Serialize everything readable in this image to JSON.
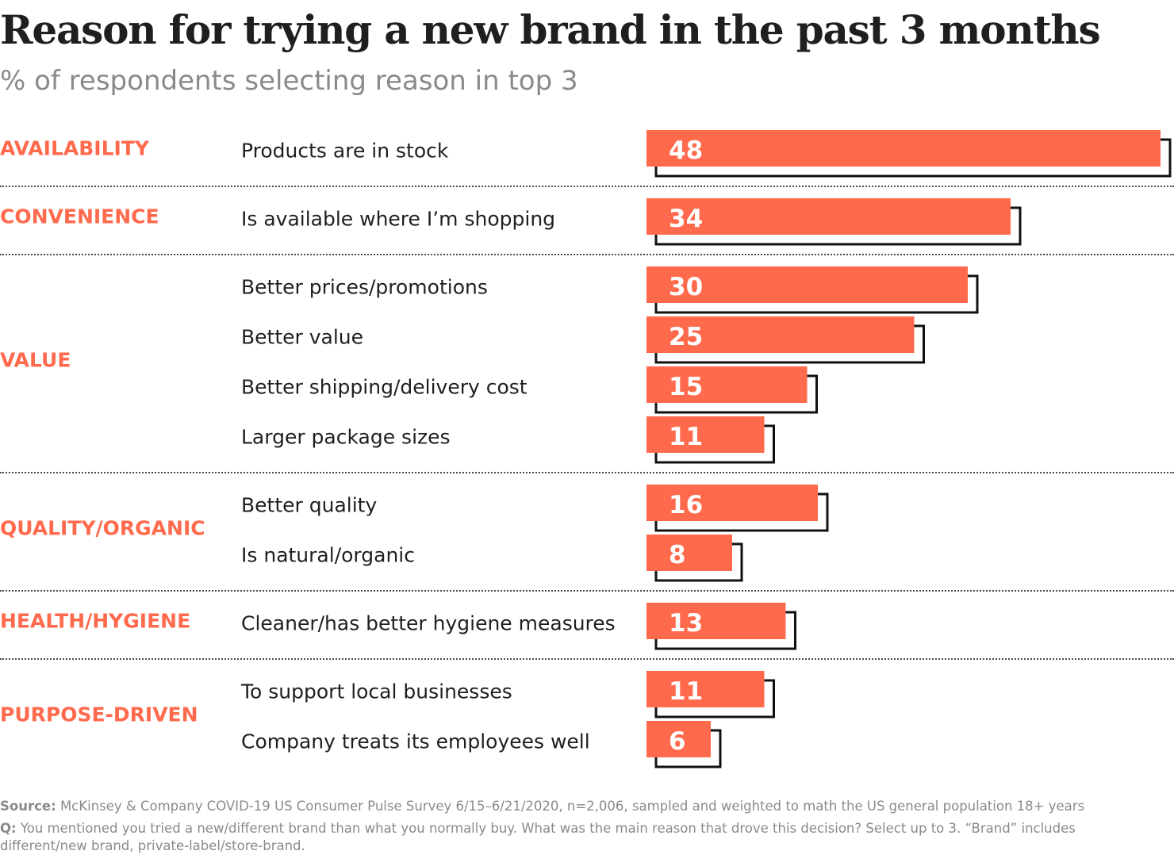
{
  "chart_data": {
    "type": "bar",
    "orientation": "horizontal",
    "title": "Reason for trying a new brand in the past 3 months",
    "subtitle": "% of respondents selecting reason in top 3",
    "xlim": [
      0,
      48
    ],
    "bar_color": "#ff6a4d",
    "shadow_color": "#111111",
    "groups": [
      {
        "name": "AVAILABILITY",
        "items": [
          {
            "label": "Products are in stock",
            "value": 48
          }
        ]
      },
      {
        "name": "CONVENIENCE",
        "items": [
          {
            "label": "Is available where I’m shopping",
            "value": 34
          }
        ]
      },
      {
        "name": "VALUE",
        "items": [
          {
            "label": "Better prices/promotions",
            "value": 30
          },
          {
            "label": "Better value",
            "value": 25
          },
          {
            "label": "Better shipping/delivery cost",
            "value": 15
          },
          {
            "label": "Larger package sizes",
            "value": 11
          }
        ]
      },
      {
        "name": "QUALITY/ORGANIC",
        "items": [
          {
            "label": "Better quality",
            "value": 16
          },
          {
            "label": "Is natural/organic",
            "value": 8
          }
        ]
      },
      {
        "name": "HEALTH/HYGIENE",
        "items": [
          {
            "label": "Cleaner/has better hygiene measures",
            "value": 13
          }
        ]
      },
      {
        "name": "PURPOSE-DRIVEN",
        "items": [
          {
            "label": "To support local businesses",
            "value": 11
          },
          {
            "label": "Company treats its employees well",
            "value": 6
          }
        ]
      }
    ]
  },
  "footer": {
    "source_label": "Source:",
    "source_text": "McKinsey & Company COVID-19 US Consumer Pulse Survey 6/15–6/21/2020, n=2,006, sampled and weighted to math the US general population 18+ years",
    "question_label": "Q:",
    "question_text": "You mentioned you tried a new/different brand than what you normally buy. What was the main reason that drove this decision? Select up to 3. “Brand” includes different/new brand, private-label/store-brand."
  }
}
